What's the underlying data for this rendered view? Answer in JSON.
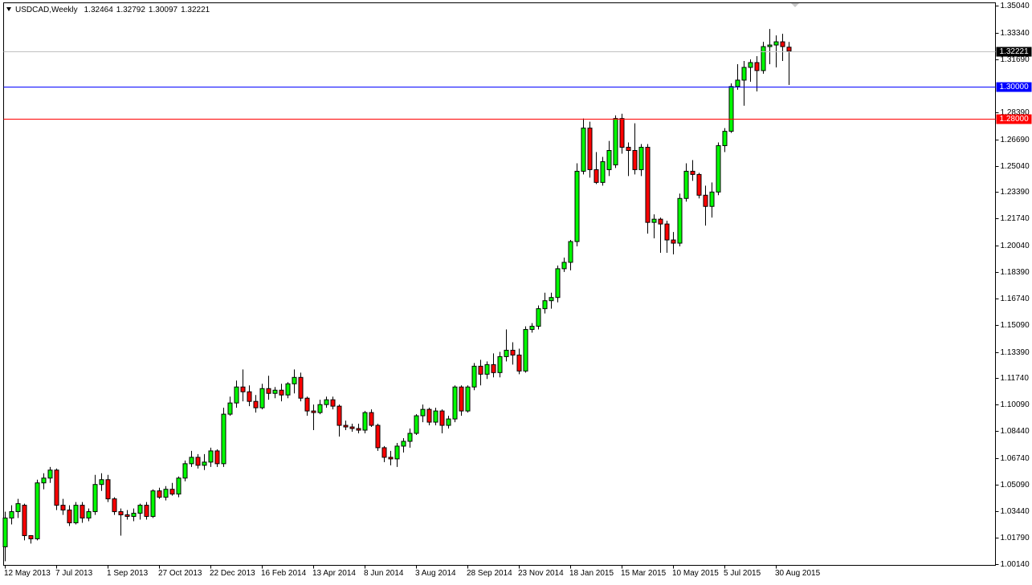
{
  "chart_data": {
    "type": "candlestick",
    "title": "USDCAD,Weekly",
    "categories": [
      "12 May 2013",
      null,
      null,
      null,
      null,
      null,
      null,
      null,
      "7 Jul 2013",
      null,
      null,
      null,
      null,
      null,
      null,
      null,
      "1 Sep 2013",
      null,
      null,
      null,
      null,
      null,
      null,
      null,
      "27 Oct 2013",
      null,
      null,
      null,
      null,
      null,
      null,
      null,
      "22 Dec 2013",
      null,
      null,
      null,
      null,
      null,
      null,
      null,
      "16 Feb 2014",
      null,
      null,
      null,
      null,
      null,
      null,
      null,
      "13 Apr 2014",
      null,
      null,
      null,
      null,
      null,
      null,
      null,
      "8 Jun 2014",
      null,
      null,
      null,
      null,
      null,
      null,
      null,
      "3 Aug 2014",
      null,
      null,
      null,
      null,
      null,
      null,
      null,
      "28 Sep 2014",
      null,
      null,
      null,
      null,
      null,
      null,
      null,
      "23 Nov 2014",
      null,
      null,
      null,
      null,
      null,
      null,
      null,
      "18 Jan 2015",
      null,
      null,
      null,
      null,
      null,
      null,
      null,
      "15 Mar 2015",
      null,
      null,
      null,
      null,
      null,
      null,
      null,
      "10 May 2015",
      null,
      null,
      null,
      null,
      null,
      null,
      null,
      "5 Jul 2015",
      null,
      null,
      null,
      null,
      null,
      null,
      null,
      "30 Aug 2015",
      null,
      null
    ],
    "open": [
      1.012,
      1.03,
      1.034,
      1.038,
      1.019,
      1.017,
      1.052,
      1.055,
      1.06,
      1.038,
      1.035,
      1.027,
      1.038,
      1.03,
      1.034,
      1.051,
      1.054,
      1.042,
      1.034,
      1.032,
      1.031,
      1.033,
      1.038,
      1.031,
      1.047,
      1.043,
      1.048,
      1.045,
      1.055,
      1.064,
      1.068,
      1.063,
      1.065,
      1.072,
      1.064,
      1.095,
      1.102,
      1.112,
      1.109,
      1.103,
      1.099,
      1.111,
      1.108,
      1.11,
      1.107,
      1.114,
      1.118,
      1.105,
      1.097,
      1.096,
      1.101,
      1.104,
      1.1,
      1.088,
      1.087,
      1.086,
      1.085,
      1.096,
      1.088,
      1.074,
      1.068,
      1.067,
      1.075,
      1.078,
      1.083,
      1.094,
      1.098,
      1.09,
      1.097,
      1.088,
      1.092,
      1.112,
      1.097,
      1.112,
      1.125,
      1.12,
      1.126,
      1.121,
      1.131,
      1.135,
      1.132,
      1.122,
      1.148,
      1.15,
      1.161,
      1.166,
      1.168,
      1.186,
      1.19,
      1.203,
      1.247,
      1.274,
      1.248,
      1.24,
      1.248,
      1.251,
      1.28,
      1.262,
      1.26,
      1.248,
      1.262,
      1.215,
      1.217,
      1.214,
      1.204,
      1.202,
      1.23,
      1.247,
      1.245,
      1.232,
      1.225,
      1.234,
      1.263,
      1.272,
      1.3,
      1.304,
      1.312,
      1.315,
      1.31,
      1.325,
      1.326,
      1.328,
      1.32464
    ],
    "high": [
      1.034,
      1.038,
      1.042,
      1.039,
      1.019,
      1.054,
      1.058,
      1.062,
      1.061,
      1.042,
      1.038,
      1.04,
      1.04,
      1.036,
      1.057,
      1.058,
      1.057,
      1.043,
      1.036,
      1.035,
      1.036,
      1.039,
      1.04,
      1.048,
      1.049,
      1.05,
      1.052,
      1.056,
      1.066,
      1.072,
      1.07,
      1.07,
      1.074,
      1.073,
      1.099,
      1.106,
      1.116,
      1.123,
      1.113,
      1.107,
      1.114,
      1.119,
      1.112,
      1.114,
      1.115,
      1.123,
      1.121,
      1.106,
      1.101,
      1.104,
      1.106,
      1.106,
      1.101,
      1.091,
      1.089,
      1.089,
      1.097,
      1.098,
      1.089,
      1.075,
      1.072,
      1.077,
      1.08,
      1.086,
      1.095,
      1.101,
      1.099,
      1.099,
      1.098,
      1.094,
      1.113,
      1.113,
      1.113,
      1.127,
      1.129,
      1.128,
      1.133,
      1.134,
      1.148,
      1.14,
      1.136,
      1.15,
      1.152,
      1.163,
      1.171,
      1.171,
      1.188,
      1.193,
      1.204,
      1.252,
      1.28,
      1.278,
      1.259,
      1.256,
      1.266,
      1.282,
      1.283,
      1.265,
      1.277,
      1.264,
      1.264,
      1.22,
      1.218,
      1.216,
      1.209,
      1.233,
      1.252,
      1.254,
      1.246,
      1.238,
      1.24,
      1.265,
      1.274,
      1.302,
      1.314,
      1.316,
      1.317,
      1.319,
      1.328,
      1.336,
      1.332,
      1.333,
      1.32792
    ],
    "low": [
      1.003,
      1.026,
      1.03,
      1.016,
      1.014,
      1.016,
      1.048,
      1.052,
      1.035,
      1.032,
      1.025,
      1.026,
      1.027,
      1.028,
      1.032,
      1.047,
      1.04,
      1.032,
      1.019,
      1.029,
      1.028,
      1.029,
      1.029,
      1.03,
      1.042,
      1.041,
      1.044,
      1.043,
      1.053,
      1.062,
      1.061,
      1.06,
      1.062,
      1.062,
      1.062,
      1.094,
      1.099,
      1.103,
      1.1,
      1.096,
      1.098,
      1.104,
      1.105,
      1.103,
      1.105,
      1.108,
      1.103,
      1.094,
      1.085,
      1.095,
      1.099,
      1.098,
      1.081,
      1.085,
      1.084,
      1.083,
      1.083,
      1.087,
      1.072,
      1.065,
      1.063,
      1.062,
      1.071,
      1.074,
      1.082,
      1.09,
      1.088,
      1.088,
      1.083,
      1.086,
      1.09,
      1.094,
      1.096,
      1.11,
      1.113,
      1.117,
      1.118,
      1.118,
      1.128,
      1.126,
      1.12,
      1.121,
      1.146,
      1.148,
      1.158,
      1.161,
      1.165,
      1.184,
      1.185,
      1.2,
      1.245,
      1.243,
      1.239,
      1.238,
      1.244,
      1.249,
      1.258,
      1.244,
      1.245,
      1.244,
      1.208,
      1.205,
      1.196,
      1.196,
      1.195,
      1.2,
      1.228,
      1.241,
      1.23,
      1.213,
      1.218,
      1.232,
      1.259,
      1.271,
      1.298,
      1.288,
      1.303,
      1.297,
      1.308,
      1.314,
      1.312,
      1.316,
      1.30097
    ],
    "close": [
      1.03,
      1.034,
      1.039,
      1.019,
      1.017,
      1.052,
      1.055,
      1.06,
      1.038,
      1.035,
      1.027,
      1.038,
      1.03,
      1.034,
      1.051,
      1.054,
      1.042,
      1.034,
      1.032,
      1.031,
      1.033,
      1.038,
      1.031,
      1.047,
      1.043,
      1.048,
      1.045,
      1.055,
      1.064,
      1.068,
      1.063,
      1.065,
      1.072,
      1.064,
      1.095,
      1.102,
      1.112,
      1.109,
      1.103,
      1.099,
      1.111,
      1.108,
      1.11,
      1.107,
      1.114,
      1.118,
      1.105,
      1.097,
      1.096,
      1.101,
      1.104,
      1.1,
      1.088,
      1.087,
      1.086,
      1.085,
      1.096,
      1.088,
      1.074,
      1.068,
      1.067,
      1.075,
      1.078,
      1.083,
      1.094,
      1.098,
      1.09,
      1.097,
      1.088,
      1.092,
      1.112,
      1.097,
      1.112,
      1.125,
      1.12,
      1.126,
      1.121,
      1.131,
      1.135,
      1.132,
      1.122,
      1.148,
      1.15,
      1.161,
      1.166,
      1.168,
      1.186,
      1.19,
      1.203,
      1.247,
      1.274,
      1.248,
      1.24,
      1.253,
      1.26,
      1.28,
      1.262,
      1.26,
      1.248,
      1.262,
      1.215,
      1.217,
      1.214,
      1.204,
      1.202,
      1.23,
      1.247,
      1.245,
      1.232,
      1.225,
      1.234,
      1.263,
      1.272,
      1.3,
      1.304,
      1.312,
      1.315,
      1.31,
      1.325,
      1.326,
      1.328,
      1.325,
      1.32221
    ],
    "up_color": "#00ff00",
    "down_color": "#ff0000",
    "ylim": [
      1.0004,
      1.3524
    ],
    "yticks": [
      {
        "value": 1.3504,
        "label": "1.35040"
      },
      {
        "value": 1.3334,
        "label": "1.33340"
      },
      {
        "value": 1.3169,
        "label": "1.31690"
      },
      {
        "value": 1.2839,
        "label": "1.28390"
      },
      {
        "value": 1.2669,
        "label": "1.26690"
      },
      {
        "value": 1.2504,
        "label": "1.25040"
      },
      {
        "value": 1.2339,
        "label": "1.23390"
      },
      {
        "value": 1.2174,
        "label": "1.21740"
      },
      {
        "value": 1.2004,
        "label": "1.20040"
      },
      {
        "value": 1.1839,
        "label": "1.18390"
      },
      {
        "value": 1.1674,
        "label": "1.16740"
      },
      {
        "value": 1.1509,
        "label": "1.15090"
      },
      {
        "value": 1.1339,
        "label": "1.13390"
      },
      {
        "value": 1.1174,
        "label": "1.11740"
      },
      {
        "value": 1.1009,
        "label": "1.10090"
      },
      {
        "value": 1.0844,
        "label": "1.08440"
      },
      {
        "value": 1.0674,
        "label": "1.06740"
      },
      {
        "value": 1.0509,
        "label": "1.05090"
      },
      {
        "value": 1.0344,
        "label": "1.03440"
      },
      {
        "value": 1.0179,
        "label": "1.01790"
      },
      {
        "value": 1.0014,
        "label": "1.00140"
      }
    ],
    "hlines": [
      {
        "value": 1.3,
        "label": "1.30000",
        "color": "#0000ff"
      },
      {
        "value": 1.28,
        "label": "1.28000",
        "color": "#ff0000"
      }
    ],
    "last_price_color": "#c0c0c0"
  }
}
